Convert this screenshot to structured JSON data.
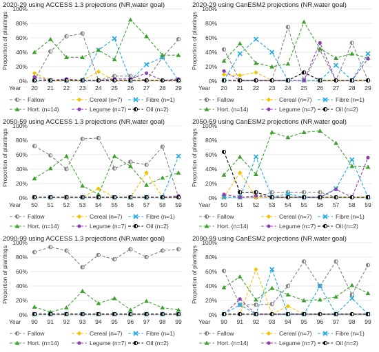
{
  "colors": {
    "Fallow": "#808080",
    "Cereal": "#f2c300",
    "Fibre": "#1fa8e0",
    "Hort.": "#3ca02c",
    "Legume": "#8e3fb0",
    "Oil": "#000000"
  },
  "legend": [
    {
      "key": "Fallow",
      "label": "Fallow",
      "marker": "circle-half",
      "dash": "dash"
    },
    {
      "key": "Cereal",
      "label": "Cereal (n=7)",
      "marker": "diamond",
      "dash": "dash"
    },
    {
      "key": "Fibre",
      "label": "Fibre (n=1)",
      "marker": "x",
      "dash": "dash"
    },
    {
      "key": "Hort.",
      "label": "Hort. (n=14)",
      "marker": "triangle",
      "dash": "dash"
    },
    {
      "key": "Legume",
      "label": "Legume (n=7)",
      "marker": "circle",
      "dash": "dash"
    },
    {
      "key": "Oil",
      "label": "Oil (n=2)",
      "marker": "circle-half",
      "dash": "dash"
    }
  ],
  "chart_data": [
    {
      "type": "line",
      "title": "2020-29 using ACCESS 1.3 projections (NR,water goal)",
      "ylabel": "Proportion of plantings",
      "xlabel": "Year",
      "ylim": [
        0,
        100
      ],
      "yticks": [
        "0%",
        "20%",
        "40%",
        "60%",
        "80%",
        "100%"
      ],
      "categories": [
        "20",
        "21",
        "22",
        "23",
        "24",
        "25",
        "26",
        "27",
        "28",
        "29"
      ],
      "series": [
        {
          "name": "Fallow",
          "values": [
            1,
            41,
            62,
            66,
            1,
            7,
            7,
            1,
            33,
            58
          ]
        },
        {
          "name": "Cereal",
          "values": [
            11,
            1,
            1,
            1,
            13,
            1,
            1,
            1,
            1,
            1
          ]
        },
        {
          "name": "Fibre",
          "values": [
            1,
            1,
            1,
            1,
            43,
            59,
            1,
            23,
            33,
            1
          ]
        },
        {
          "name": "Hort.",
          "values": [
            40,
            58,
            33,
            33,
            43,
            30,
            85,
            62,
            36,
            36
          ]
        },
        {
          "name": "Legume",
          "values": [
            6,
            1,
            3,
            1,
            1,
            3,
            3,
            11,
            1,
            3
          ]
        },
        {
          "name": "Oil",
          "values": [
            1,
            1,
            1,
            1,
            1,
            1,
            1,
            1,
            1,
            1
          ]
        }
      ]
    },
    {
      "type": "line",
      "title": "2020-29 using CanESM2 projections (NR,water goal)",
      "ylabel": "Proportion of plantings",
      "xlabel": "Year",
      "ylim": [
        0,
        100
      ],
      "yticks": [
        "0%",
        "20%",
        "40%",
        "60%",
        "80%",
        "100%"
      ],
      "categories": [
        "20",
        "21",
        "22",
        "23",
        "24",
        "25",
        "26",
        "27",
        "28",
        "29"
      ],
      "series": [
        {
          "name": "Fallow",
          "values": [
            44,
            1,
            1,
            1,
            75,
            1,
            43,
            1,
            53,
            1
          ]
        },
        {
          "name": "Cereal",
          "values": [
            9,
            8,
            12,
            1,
            1,
            1,
            1,
            1,
            1,
            1
          ]
        },
        {
          "name": "Fibre",
          "values": [
            1,
            38,
            58,
            40,
            1,
            1,
            1,
            22,
            1,
            38
          ]
        },
        {
          "name": "Hort.",
          "values": [
            28,
            52,
            25,
            20,
            24,
            82,
            45,
            32,
            38,
            32
          ]
        },
        {
          "name": "Legume",
          "values": [
            14,
            1,
            1,
            1,
            1,
            1,
            53,
            1,
            1,
            31
          ]
        },
        {
          "name": "Oil",
          "values": [
            1,
            1,
            1,
            1,
            1,
            12,
            1,
            1,
            1,
            1
          ]
        }
      ]
    },
    {
      "type": "line",
      "title": "2050-59 using ACCESS 1.3 projections (NR,water goal)",
      "ylabel": "Proportion of plantings",
      "xlabel": "Year",
      "ylim": [
        0,
        100
      ],
      "yticks": [
        "0%",
        "20%",
        "40%",
        "60%",
        "80%",
        "100%"
      ],
      "categories": [
        "50",
        "51",
        "52",
        "53",
        "54",
        "55",
        "56",
        "57",
        "58",
        "59"
      ],
      "series": [
        {
          "name": "Fallow",
          "values": [
            72,
            59,
            40,
            82,
            83,
            41,
            50,
            46,
            71,
            1
          ]
        },
        {
          "name": "Cereal",
          "values": [
            1,
            1,
            1,
            1,
            13,
            1,
            1,
            35,
            1,
            1
          ]
        },
        {
          "name": "Fibre",
          "values": [
            1,
            1,
            1,
            1,
            1,
            1,
            1,
            1,
            1,
            58
          ]
        },
        {
          "name": "Hort.",
          "values": [
            27,
            41,
            58,
            17,
            5,
            58,
            44,
            18,
            28,
            35
          ]
        },
        {
          "name": "Legume",
          "values": [
            1,
            1,
            1,
            1,
            1,
            1,
            1,
            1,
            1,
            3
          ]
        },
        {
          "name": "Oil",
          "values": [
            1,
            1,
            1,
            1,
            1,
            1,
            1,
            1,
            1,
            1
          ]
        }
      ]
    },
    {
      "type": "line",
      "title": "2050-59 using CanESM2 projections (NR,water goal)",
      "ylabel": "Proportion of plantings",
      "xlabel": "Year",
      "ylim": [
        0,
        100
      ],
      "yticks": [
        "0%",
        "20%",
        "40%",
        "60%",
        "80%",
        "100%"
      ],
      "categories": [
        "50",
        "51",
        "52",
        "53",
        "54",
        "55",
        "56",
        "57",
        "58",
        "59"
      ],
      "series": [
        {
          "name": "Fallow",
          "values": [
            1,
            1,
            1,
            8,
            8,
            8,
            8,
            1,
            1,
            1
          ]
        },
        {
          "name": "Cereal",
          "values": [
            1,
            35,
            1,
            1,
            1,
            1,
            1,
            1,
            1,
            1
          ]
        },
        {
          "name": "Fibre",
          "values": [
            1,
            1,
            57,
            1,
            6,
            1,
            1,
            13,
            53,
            1
          ]
        },
        {
          "name": "Hort.",
          "values": [
            32,
            57,
            33,
            91,
            84,
            91,
            93,
            76,
            44,
            43
          ]
        },
        {
          "name": "Legume",
          "values": [
            5,
            1,
            3,
            1,
            1,
            1,
            1,
            12,
            1,
            56
          ]
        },
        {
          "name": "Oil",
          "values": [
            64,
            8,
            8,
            1,
            1,
            1,
            1,
            1,
            1,
            1
          ]
        }
      ]
    },
    {
      "type": "line",
      "title": "2090-99 using ACCESS 1.3 projections (NR,water goal)",
      "ylabel": "Proportion of plantings",
      "xlabel": "Year",
      "ylim": [
        0,
        100
      ],
      "yticks": [
        "0%",
        "20%",
        "40%",
        "60%",
        "80%",
        "100%"
      ],
      "categories": [
        "90",
        "91",
        "92",
        "93",
        "94",
        "95",
        "96",
        "97",
        "98",
        "99"
      ],
      "series": [
        {
          "name": "Fallow",
          "values": [
            87,
            94,
            89,
            66,
            83,
            77,
            91,
            80,
            89,
            91
          ]
        },
        {
          "name": "Cereal",
          "values": [
            1,
            1,
            1,
            1,
            1,
            1,
            1,
            1,
            1,
            1
          ]
        },
        {
          "name": "Fibre",
          "values": [
            1,
            1,
            1,
            1,
            1,
            1,
            1,
            1,
            1,
            1
          ]
        },
        {
          "name": "Hort.",
          "values": [
            11,
            4,
            10,
            33,
            16,
            23,
            7,
            19,
            10,
            7
          ]
        },
        {
          "name": "Legume",
          "values": [
            1,
            1,
            1,
            1,
            1,
            1,
            1,
            1,
            1,
            1
          ]
        },
        {
          "name": "Oil",
          "values": [
            1,
            1,
            1,
            1,
            1,
            1,
            1,
            1,
            1,
            1
          ]
        }
      ]
    },
    {
      "type": "line",
      "title": "2090-99 using CanESM2 projections (NR,water goal)",
      "ylabel": "Proportion of plantings",
      "xlabel": "Year",
      "ylim": [
        0,
        100
      ],
      "yticks": [
        "0%",
        "20%",
        "40%",
        "60%",
        "80%",
        "100%"
      ],
      "categories": [
        "90",
        "91",
        "92",
        "93",
        "94",
        "95",
        "96",
        "97",
        "98",
        "99"
      ],
      "series": [
        {
          "name": "Fallow",
          "values": [
            61,
            14,
            14,
            15,
            40,
            74,
            40,
            74,
            28,
            69
          ]
        },
        {
          "name": "Cereal",
          "values": [
            1,
            1,
            63,
            1,
            12,
            1,
            1,
            1,
            1,
            1
          ]
        },
        {
          "name": "Fibre",
          "values": [
            1,
            14,
            1,
            63,
            1,
            1,
            40,
            1,
            23,
            1
          ]
        },
        {
          "name": "Hort.",
          "values": [
            38,
            53,
            21,
            37,
            28,
            20,
            21,
            25,
            41,
            30
          ]
        },
        {
          "name": "Legume",
          "values": [
            1,
            22,
            1,
            1,
            1,
            1,
            1,
            1,
            1,
            1
          ]
        },
        {
          "name": "Oil",
          "values": [
            1,
            1,
            1,
            1,
            1,
            1,
            1,
            1,
            1,
            1
          ]
        }
      ]
    }
  ]
}
